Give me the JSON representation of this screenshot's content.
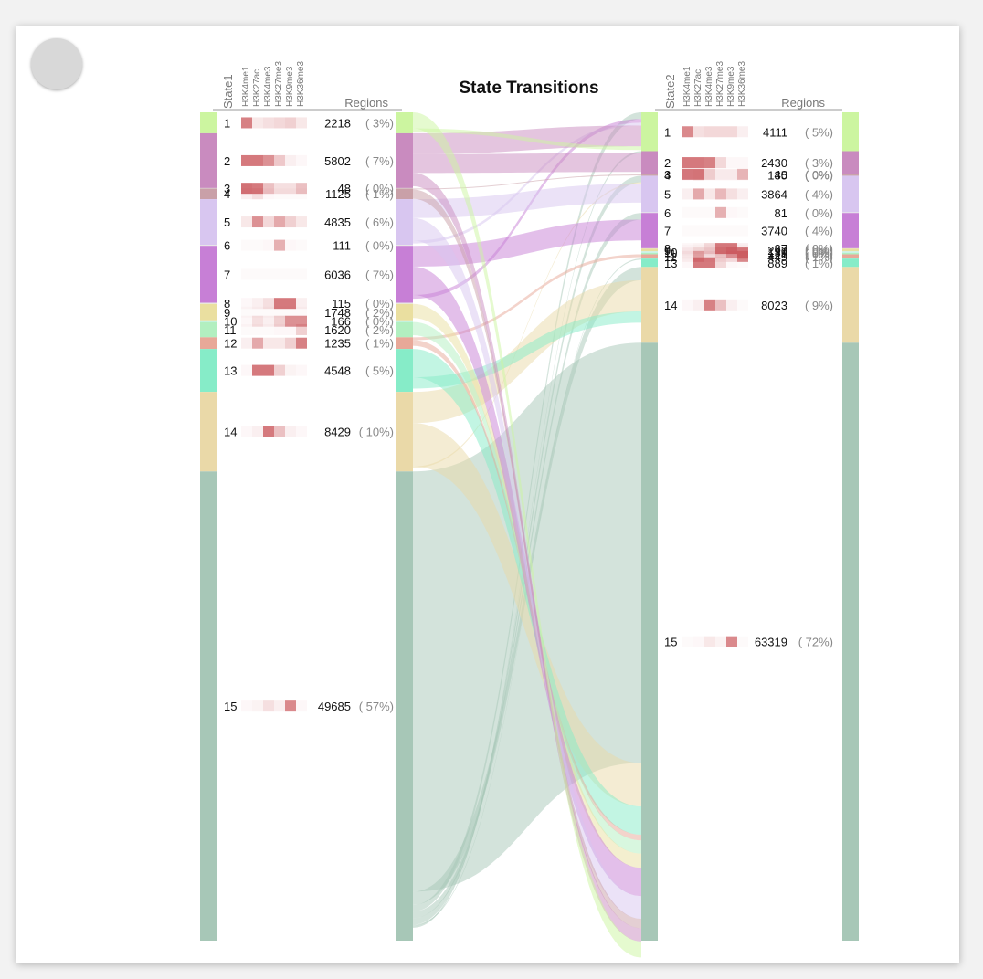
{
  "chart_data": {
    "type": "sankey",
    "title": "State Transitions",
    "left": {
      "label": "State1",
      "regions_label": "Regions"
    },
    "right": {
      "label": "State2",
      "regions_label": "Regions"
    },
    "marks": [
      "H3K4me1",
      "H3K27ac",
      "H3K4me3",
      "H3K27me3",
      "H3K9me3",
      "H3K36me3"
    ],
    "state_colors": [
      "#ccf5a0",
      "#c98bbf",
      "#ffffff",
      "#c9a0a8",
      "#d8c6f0",
      "#f4f4f4",
      "#c77fd6",
      "#f4f4f4",
      "#eadfa0",
      "#c6f2f2",
      "#b2efc0",
      "#e8a898",
      "#86ecc8",
      "#ead9a8",
      "#a7c7b7"
    ],
    "left_states": [
      {
        "id": "1",
        "count": 2218,
        "pct": "( 3%)",
        "emissions": [
          0.8,
          0.15,
          0.2,
          0.25,
          0.3,
          0.15
        ]
      },
      {
        "id": "2",
        "count": 5802,
        "pct": "( 7%)",
        "emissions": [
          0.85,
          0.85,
          0.7,
          0.35,
          0.1,
          0.05
        ]
      },
      {
        "id": "3",
        "count": 48,
        "pct": "( 0%)",
        "emissions": [
          0.9,
          0.85,
          0.4,
          0.2,
          0.2,
          0.4
        ]
      },
      {
        "id": "4",
        "count": 1125,
        "pct": "( 1%)",
        "emissions": [
          0.1,
          0.2,
          0.05,
          0.02,
          0.02,
          0.02
        ]
      },
      {
        "id": "5",
        "count": 4835,
        "pct": "( 6%)",
        "emissions": [
          0.15,
          0.7,
          0.25,
          0.55,
          0.3,
          0.15
        ]
      },
      {
        "id": "6",
        "count": 111,
        "pct": "( 0%)",
        "emissions": [
          0.02,
          0.02,
          0.05,
          0.5,
          0.05,
          0.02
        ]
      },
      {
        "id": "7",
        "count": 6036,
        "pct": "( 7%)",
        "emissions": [
          0,
          0,
          0,
          0,
          0,
          0
        ]
      },
      {
        "id": "8",
        "count": 115,
        "pct": "( 0%)",
        "emissions": [
          0.05,
          0.1,
          0.2,
          0.85,
          0.85,
          0.1
        ]
      },
      {
        "id": "9",
        "count": 1748,
        "pct": "( 2%)",
        "emissions": [
          0.02,
          0.02,
          0.02,
          0.02,
          0.02,
          0.02
        ]
      },
      {
        "id": "10",
        "count": 166,
        "pct": "( 0%)",
        "emissions": [
          0.05,
          0.2,
          0.1,
          0.3,
          0.7,
          0.7
        ]
      },
      {
        "id": "11",
        "count": 1620,
        "pct": "( 2%)",
        "emissions": [
          0.02,
          0.02,
          0.02,
          0.05,
          0.05,
          0.3
        ]
      },
      {
        "id": "12",
        "count": 1235,
        "pct": "( 1%)",
        "emissions": [
          0.1,
          0.55,
          0.15,
          0.15,
          0.3,
          0.8
        ]
      },
      {
        "id": "13",
        "count": 4548,
        "pct": "( 5%)",
        "emissions": [
          0.05,
          0.85,
          0.85,
          0.3,
          0.08,
          0.05
        ]
      },
      {
        "id": "14",
        "count": 8429,
        "pct": "( 10%)",
        "emissions": [
          0.05,
          0.1,
          0.85,
          0.4,
          0.1,
          0.05
        ]
      },
      {
        "id": "15",
        "count": 49685,
        "pct": "( 57%)",
        "emissions": [
          0.05,
          0.08,
          0.2,
          0.1,
          0.75,
          0.05
        ]
      }
    ],
    "right_states": [
      {
        "id": "1",
        "count": 4111,
        "pct": "( 5%)",
        "emissions": [
          0.75,
          0.2,
          0.25,
          0.25,
          0.25,
          0.1
        ]
      },
      {
        "id": "2",
        "count": 2430,
        "pct": "( 3%)",
        "emissions": [
          0.85,
          0.85,
          0.8,
          0.25,
          0.05,
          0.05
        ]
      },
      {
        "id": "3",
        "count": 40,
        "pct": "( 0%)",
        "emissions": [
          0.85,
          0.85,
          0.3,
          0.1,
          0.1,
          0.45
        ]
      },
      {
        "id": "4",
        "count": 135,
        "pct": "( 0%)",
        "emissions": [
          0.05,
          0.15,
          0.02,
          0.02,
          0.02,
          0.02
        ]
      },
      {
        "id": "5",
        "count": 3864,
        "pct": "( 4%)",
        "emissions": [
          0.1,
          0.55,
          0.15,
          0.45,
          0.2,
          0.1
        ]
      },
      {
        "id": "6",
        "count": 81,
        "pct": "( 0%)",
        "emissions": [
          0.02,
          0.02,
          0.02,
          0.5,
          0.05,
          0.02
        ]
      },
      {
        "id": "7",
        "count": 3740,
        "pct": "( 4%)",
        "emissions": [
          0,
          0,
          0,
          0,
          0,
          0
        ]
      },
      {
        "id": "8",
        "count": 37,
        "pct": "( 0%)",
        "emissions": [
          0.05,
          0.08,
          0.25,
          0.85,
          0.85,
          0.1
        ]
      },
      {
        "id": "9",
        "count": 293,
        "pct": "( 0%)",
        "emissions": [
          0,
          0,
          0,
          0,
          0,
          0
        ]
      },
      {
        "id": "10",
        "count": 139,
        "pct": "( 0%)",
        "emissions": [
          0.05,
          0.15,
          0.1,
          0.3,
          0.6,
          0.75
        ]
      },
      {
        "id": "11",
        "count": 171,
        "pct": "( 0%)",
        "emissions": [
          0.02,
          0.02,
          0.02,
          0.02,
          0.05,
          0.3
        ]
      },
      {
        "id": "12",
        "count": 449,
        "pct": "( 1%)",
        "emissions": [
          0.08,
          0.5,
          0.1,
          0.1,
          0.2,
          0.75
        ]
      },
      {
        "id": "13",
        "count": 889,
        "pct": "( 1%)",
        "emissions": [
          0.05,
          0.85,
          0.85,
          0.25,
          0.05,
          0.02
        ]
      },
      {
        "id": "14",
        "count": 8023,
        "pct": "( 9%)",
        "emissions": [
          0.05,
          0.1,
          0.8,
          0.4,
          0.1,
          0.02
        ]
      },
      {
        "id": "15",
        "count": 63319,
        "pct": "( 72%)",
        "emissions": [
          0.02,
          0.05,
          0.15,
          0.08,
          0.75,
          0.02
        ]
      }
    ],
    "transitions": [
      {
        "from": "15",
        "to": "15",
        "value": 44500
      },
      {
        "from": "15",
        "to": "14",
        "value": 1400
      },
      {
        "from": "15",
        "to": "1",
        "value": 700
      },
      {
        "from": "15",
        "to": "7",
        "value": 700
      },
      {
        "from": "15",
        "to": "5",
        "value": 700
      },
      {
        "from": "15",
        "to": "13",
        "value": 120
      },
      {
        "from": "15",
        "to": "2",
        "value": 200
      },
      {
        "from": "14",
        "to": "14",
        "value": 3300
      },
      {
        "from": "14",
        "to": "15",
        "value": 4600
      },
      {
        "from": "14",
        "to": "5",
        "value": 150
      },
      {
        "from": "13",
        "to": "15",
        "value": 3000
      },
      {
        "from": "13",
        "to": "14",
        "value": 1200
      },
      {
        "from": "12",
        "to": "12",
        "value": 300
      },
      {
        "from": "12",
        "to": "15",
        "value": 600
      },
      {
        "from": "11",
        "to": "15",
        "value": 1400
      },
      {
        "from": "9",
        "to": "15",
        "value": 1500
      },
      {
        "from": "7",
        "to": "7",
        "value": 2200
      },
      {
        "from": "7",
        "to": "15",
        "value": 3000
      },
      {
        "from": "7",
        "to": "1",
        "value": 400
      },
      {
        "from": "5",
        "to": "5",
        "value": 2000
      },
      {
        "from": "5",
        "to": "15",
        "value": 2400
      },
      {
        "from": "5",
        "to": "1",
        "value": 300
      },
      {
        "from": "4",
        "to": "4",
        "value": 100
      },
      {
        "from": "4",
        "to": "15",
        "value": 1000
      },
      {
        "from": "2",
        "to": "1",
        "value": 2200
      },
      {
        "from": "2",
        "to": "2",
        "value": 2000
      },
      {
        "from": "2",
        "to": "15",
        "value": 1400
      },
      {
        "from": "1",
        "to": "15",
        "value": 1700
      },
      {
        "from": "1",
        "to": "1",
        "value": 400
      }
    ]
  }
}
